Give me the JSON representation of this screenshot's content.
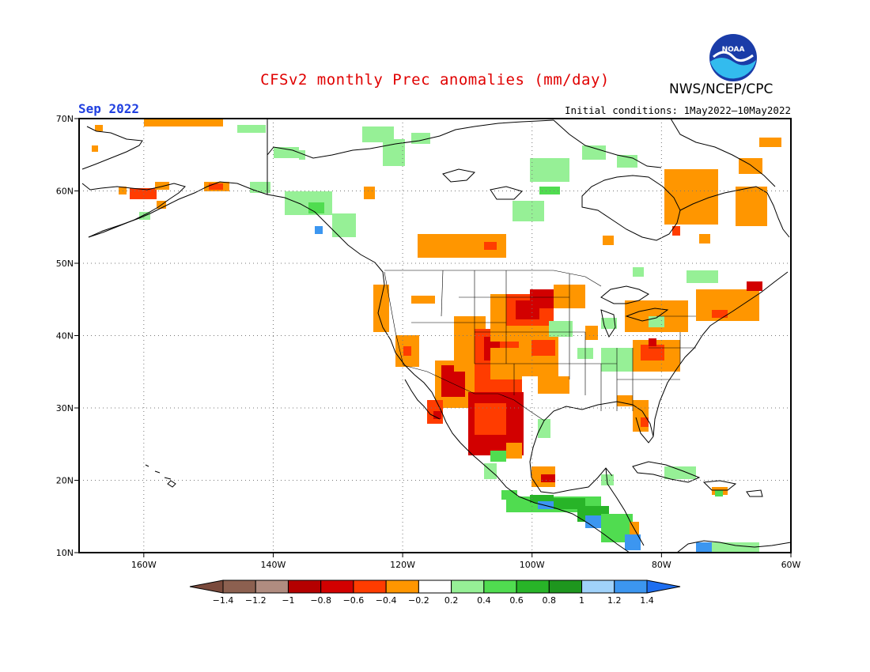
{
  "title": "CFSv2 monthly Prec anomalies (mm/day)",
  "period": "Sep 2022",
  "initial_conditions": "Initial conditions: 1May2022–10May2022",
  "agency": "NWS/NCEP/CPC",
  "logo_text": "NOAA",
  "logo_icon": "noaa-logo-icon",
  "map": {
    "lon_range": [
      -170,
      -60
    ],
    "lat_range": [
      10,
      70
    ],
    "lon_ticks": [
      -160,
      -140,
      -120,
      -100,
      -80,
      -60
    ],
    "lat_ticks": [
      10,
      20,
      30,
      40,
      50,
      60,
      70
    ],
    "lon_labels": [
      "160W",
      "140W",
      "120W",
      "100W",
      "80W",
      "60W"
    ],
    "lat_labels": [
      "10N",
      "20N",
      "30N",
      "40N",
      "50N",
      "60N",
      "70N"
    ],
    "grid": "dotted"
  },
  "colorbar": {
    "levels": [
      "-1.4",
      "-1.2",
      "-1",
      "-0.8",
      "-0.6",
      "-0.4",
      "-0.2",
      "0.2",
      "0.4",
      "0.6",
      "0.8",
      "1",
      "1.2",
      "1.4"
    ],
    "colors": [
      "#7a4a3c",
      "#8c6050",
      "#b08c80",
      "#b40000",
      "#d20000",
      "#ff3c00",
      "#ff9600",
      "#ffffff",
      "#96f096",
      "#50dc50",
      "#28b428",
      "#1e961e",
      "#a0d2fa",
      "#3c96f0",
      "#1e6ef0"
    ]
  },
  "colors": {
    "title": "#e00000",
    "period": "#2040e0",
    "land_outline": "#000000"
  }
}
